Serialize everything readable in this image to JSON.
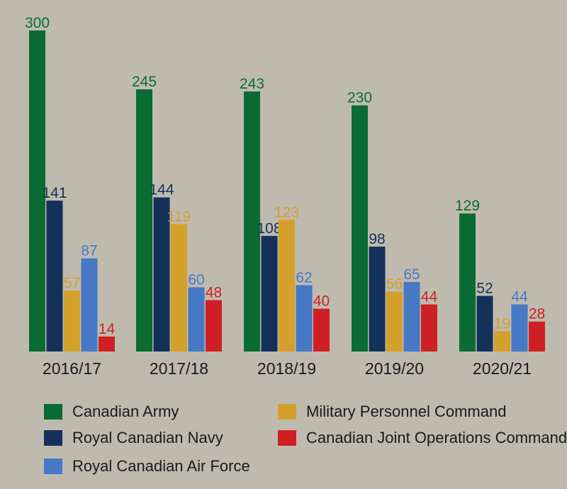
{
  "chart_data": {
    "type": "bar",
    "categories": [
      "2016/17",
      "2017/18",
      "2018/19",
      "2019/20",
      "2020/21"
    ],
    "series": [
      {
        "name": "Canadian Army",
        "color": "#0b6b35",
        "values": [
          300,
          245,
          243,
          230,
          129
        ]
      },
      {
        "name": "Royal Canadian Navy",
        "color": "#14315a",
        "values": [
          141,
          144,
          108,
          98,
          52
        ]
      },
      {
        "name": "Military Personnel Command",
        "color": "#d4a02c",
        "values": [
          57,
          119,
          123,
          56,
          19
        ]
      },
      {
        "name": "Royal Canadian Air Force",
        "color": "#4678c6",
        "values": [
          87,
          60,
          62,
          65,
          44
        ]
      },
      {
        "name": "Canadian Joint Operations Command",
        "color": "#cf2026",
        "values": [
          14,
          48,
          40,
          44,
          28
        ]
      }
    ],
    "title": "",
    "xlabel": "",
    "ylabel": "",
    "ylim": [
      0,
      300
    ],
    "grid": false,
    "legend_position": "bottom"
  },
  "legend": {
    "items": [
      {
        "label": "Canadian Army",
        "color": "#0b6b35"
      },
      {
        "label": "Royal Canadian Navy",
        "color": "#14315a"
      },
      {
        "label": "Royal Canadian Air Force",
        "color": "#4678c6"
      },
      {
        "label": "Military Personnel Command",
        "color": "#d4a02c"
      },
      {
        "label": "Canadian Joint Operations Command",
        "color": "#cf2026"
      }
    ]
  },
  "colors": {
    "background": "#bfbaae",
    "text": "#1a1a1a"
  }
}
